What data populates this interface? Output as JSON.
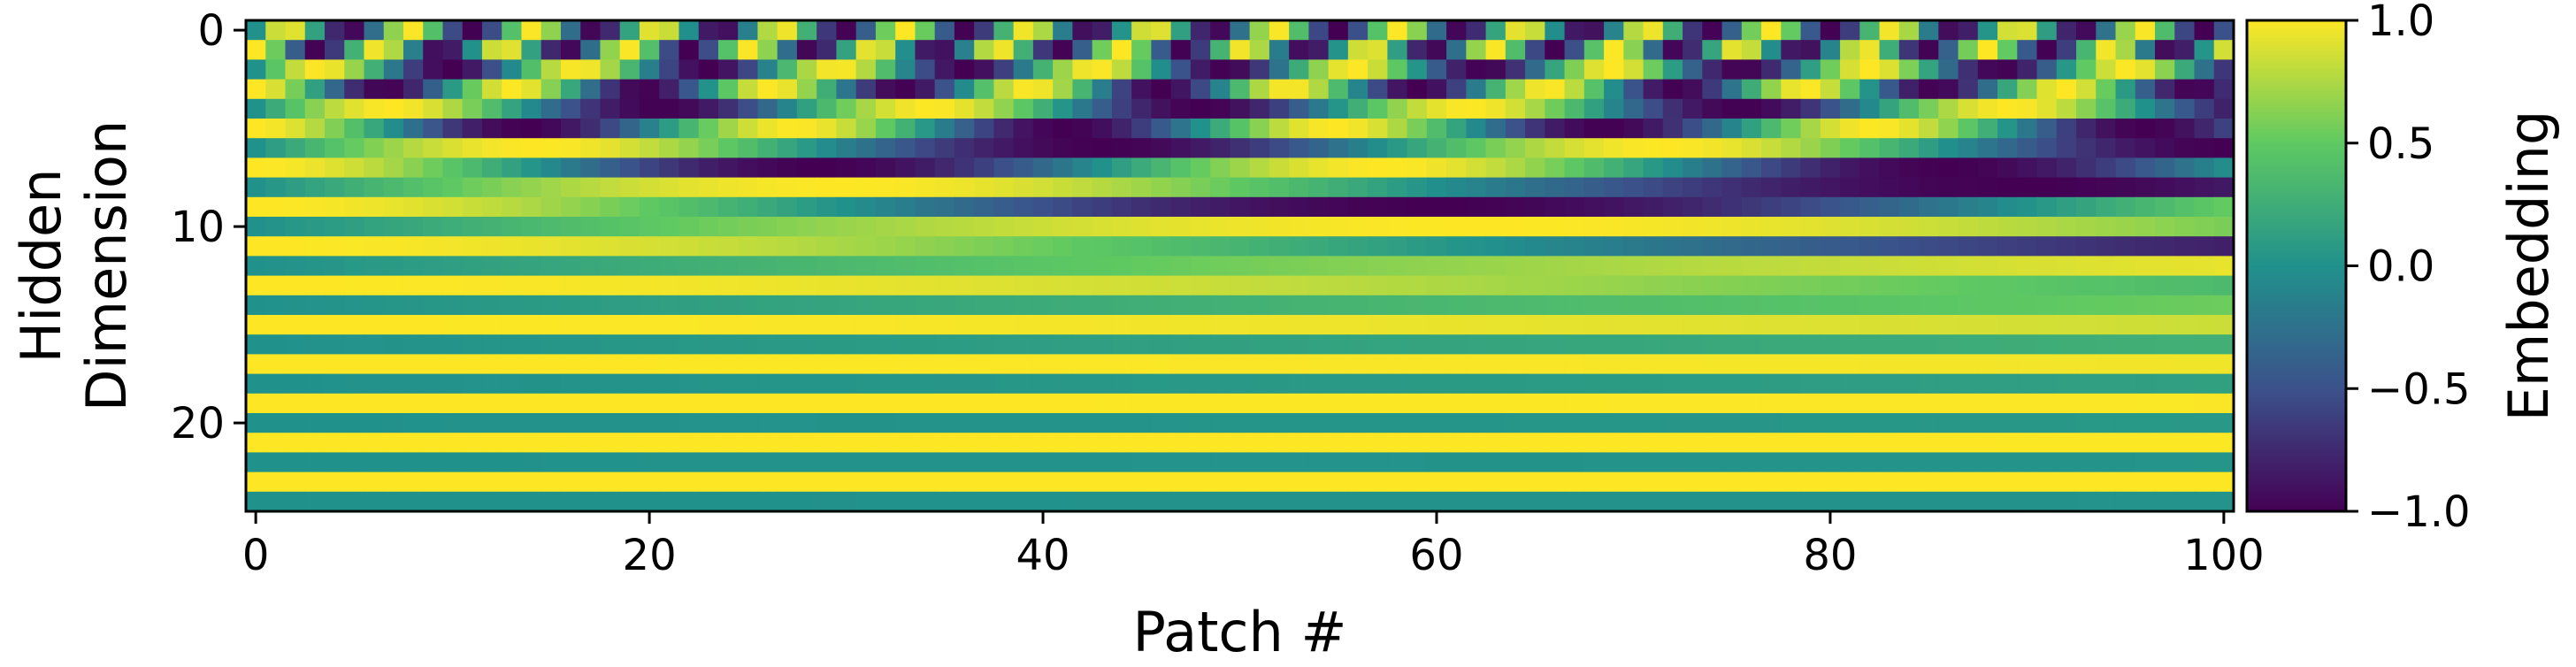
{
  "chart_data": {
    "type": "heatmap",
    "title": "",
    "xlabel": "Patch #",
    "ylabel_lines": [
      "Hidden",
      "Dimension"
    ],
    "colorbar_label": "Embedding",
    "colormap": "viridis",
    "colormap_stops": [
      "#440154",
      "#3b528b",
      "#21918c",
      "#5ec962",
      "#fde725"
    ],
    "value_range": [
      -1.0,
      1.0
    ],
    "num_positions": 101,
    "num_dims": 25,
    "x_ticks": [
      0,
      20,
      40,
      60,
      80,
      100
    ],
    "x_tick_labels": [
      "0",
      "20",
      "40",
      "60",
      "80",
      "100"
    ],
    "y_ticks": [
      0,
      10,
      20
    ],
    "y_tick_labels": [
      "0",
      "10",
      "20"
    ],
    "colorbar_ticks": [
      1.0,
      0.5,
      0.0,
      -0.5,
      -1.0
    ],
    "colorbar_tick_labels": [
      "1.0",
      "0.5",
      "0.0",
      "−0.5",
      "−1.0"
    ],
    "value_rule": "sinusoidal positional embedding: row d uses angular frequency 10000^(-2*floor(d/2)/25); even rows sin(position*frequency), odd rows cos(position*frequency)",
    "rows": {
      "base": 10000,
      "dimension_model": 25,
      "even_row_function": "sin",
      "odd_row_function": "cos"
    }
  }
}
